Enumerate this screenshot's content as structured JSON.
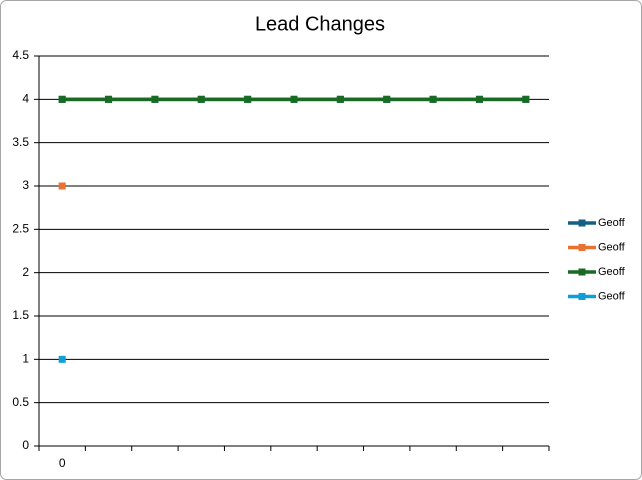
{
  "chart_data": {
    "type": "line",
    "title": "Lead Changes",
    "categories": [
      "0",
      null,
      null,
      null,
      null,
      null,
      null,
      null,
      null,
      null,
      null
    ],
    "series": [
      {
        "name": "Geoff",
        "color": "#156082",
        "values": [
          4,
          4,
          4,
          4,
          4,
          4,
          4,
          4,
          4,
          4,
          4
        ]
      },
      {
        "name": "Geoff",
        "color": "#e97132",
        "values": [
          3,
          null,
          null,
          null,
          null,
          null,
          null,
          null,
          null,
          null,
          null
        ]
      },
      {
        "name": "Geoff",
        "color": "#196b24",
        "values": [
          4,
          4,
          4,
          4,
          4,
          4,
          4,
          4,
          4,
          4,
          4
        ]
      },
      {
        "name": "Geoff",
        "color": "#0f9ed5",
        "values": [
          1,
          null,
          null,
          null,
          null,
          null,
          null,
          null,
          null,
          null,
          null
        ]
      }
    ],
    "ylim": [
      0,
      4.5
    ],
    "yticks": [
      0,
      0.5,
      1,
      1.5,
      2,
      2.5,
      3,
      3.5,
      4,
      4.5
    ],
    "grid": true,
    "legend": "right"
  }
}
